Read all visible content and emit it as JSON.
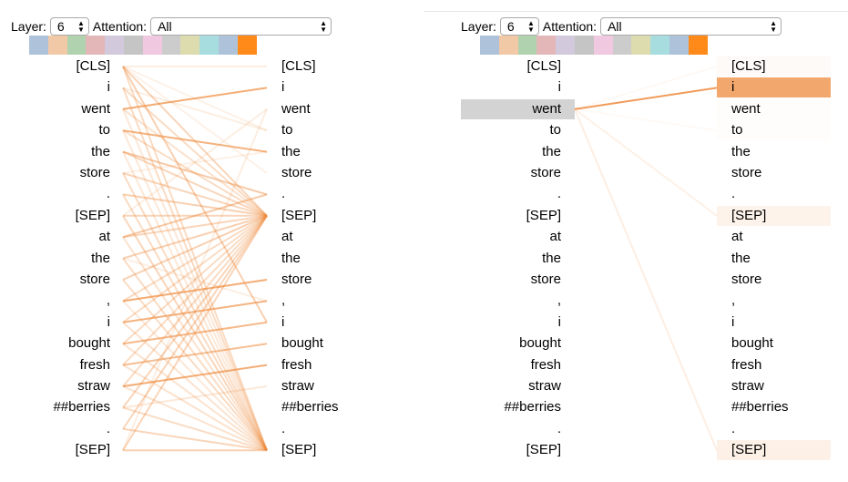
{
  "left_view": {
    "layer_label": "Layer:",
    "layer_value": "6",
    "attention_label": "Attention:",
    "attention_value": "All",
    "selected_token_index": null
  },
  "right_view": {
    "layer_label": "Layer:",
    "layer_value": "6",
    "attention_label": "Attention:",
    "attention_value": "All",
    "selected_token_index": 2
  },
  "head_colors": [
    "#aec3d9",
    "#f2c9a6",
    "#b0d2ae",
    "#e3b7b7",
    "#d2c9dd",
    "#c5c5c5",
    "#f0c8e0",
    "#cccccc",
    "#dddcae",
    "#a8dde0",
    "#aec3d9",
    "#ff8a1a"
  ],
  "attention_color": "#ee8a3c",
  "tokens": [
    "[CLS]",
    "i",
    "went",
    "to",
    "the",
    "store",
    ".",
    "[SEP]",
    "at",
    "the",
    "store",
    ",",
    "i",
    "bought",
    "fresh",
    "straw",
    "##berries",
    ".",
    "[SEP]"
  ],
  "left_attention": [
    [
      0,
      7,
      0.35
    ],
    [
      0,
      12,
      0.4
    ],
    [
      0,
      18,
      0.3
    ],
    [
      0,
      0,
      0.15
    ],
    [
      0,
      3,
      0.12
    ],
    [
      0,
      5,
      0.12
    ],
    [
      1,
      7,
      0.3
    ],
    [
      1,
      18,
      0.3
    ],
    [
      1,
      3,
      0.15
    ],
    [
      2,
      1,
      0.7
    ],
    [
      2,
      7,
      0.25
    ],
    [
      2,
      18,
      0.2
    ],
    [
      3,
      4,
      0.65
    ],
    [
      3,
      7,
      0.3
    ],
    [
      3,
      18,
      0.2
    ],
    [
      4,
      6,
      0.45
    ],
    [
      4,
      7,
      0.35
    ],
    [
      4,
      18,
      0.2
    ],
    [
      5,
      7,
      0.35
    ],
    [
      5,
      18,
      0.3
    ],
    [
      5,
      4,
      0.12
    ],
    [
      6,
      7,
      0.4
    ],
    [
      6,
      18,
      0.3
    ],
    [
      7,
      7,
      0.35
    ],
    [
      7,
      18,
      0.35
    ],
    [
      7,
      2,
      0.15
    ],
    [
      8,
      6,
      0.45
    ],
    [
      8,
      7,
      0.35
    ],
    [
      8,
      18,
      0.25
    ],
    [
      9,
      7,
      0.4
    ],
    [
      9,
      18,
      0.3
    ],
    [
      9,
      11,
      0.15
    ],
    [
      10,
      7,
      0.4
    ],
    [
      10,
      18,
      0.3
    ],
    [
      11,
      10,
      0.7
    ],
    [
      11,
      7,
      0.3
    ],
    [
      11,
      18,
      0.2
    ],
    [
      12,
      11,
      0.65
    ],
    [
      12,
      7,
      0.3
    ],
    [
      12,
      18,
      0.25
    ],
    [
      13,
      12,
      0.6
    ],
    [
      13,
      7,
      0.3
    ],
    [
      13,
      18,
      0.25
    ],
    [
      14,
      13,
      0.55
    ],
    [
      14,
      7,
      0.3
    ],
    [
      14,
      18,
      0.25
    ],
    [
      15,
      14,
      0.7
    ],
    [
      15,
      7,
      0.3
    ],
    [
      15,
      18,
      0.25
    ],
    [
      16,
      7,
      0.35
    ],
    [
      16,
      18,
      0.3
    ],
    [
      16,
      15,
      0.2
    ],
    [
      17,
      7,
      0.35
    ],
    [
      17,
      18,
      0.35
    ],
    [
      18,
      7,
      0.35
    ],
    [
      18,
      18,
      0.4
    ],
    [
      18,
      2,
      0.15
    ]
  ],
  "right_attention": [
    [
      2,
      1,
      0.85
    ],
    [
      2,
      7,
      0.12
    ],
    [
      2,
      18,
      0.14
    ],
    [
      2,
      0,
      0.05
    ],
    [
      2,
      3,
      0.04
    ]
  ],
  "right_highlights": [
    [
      1,
      0.75
    ],
    [
      7,
      0.1
    ],
    [
      18,
      0.12
    ],
    [
      0,
      0.04
    ],
    [
      2,
      0.02
    ],
    [
      3,
      0.02
    ]
  ]
}
